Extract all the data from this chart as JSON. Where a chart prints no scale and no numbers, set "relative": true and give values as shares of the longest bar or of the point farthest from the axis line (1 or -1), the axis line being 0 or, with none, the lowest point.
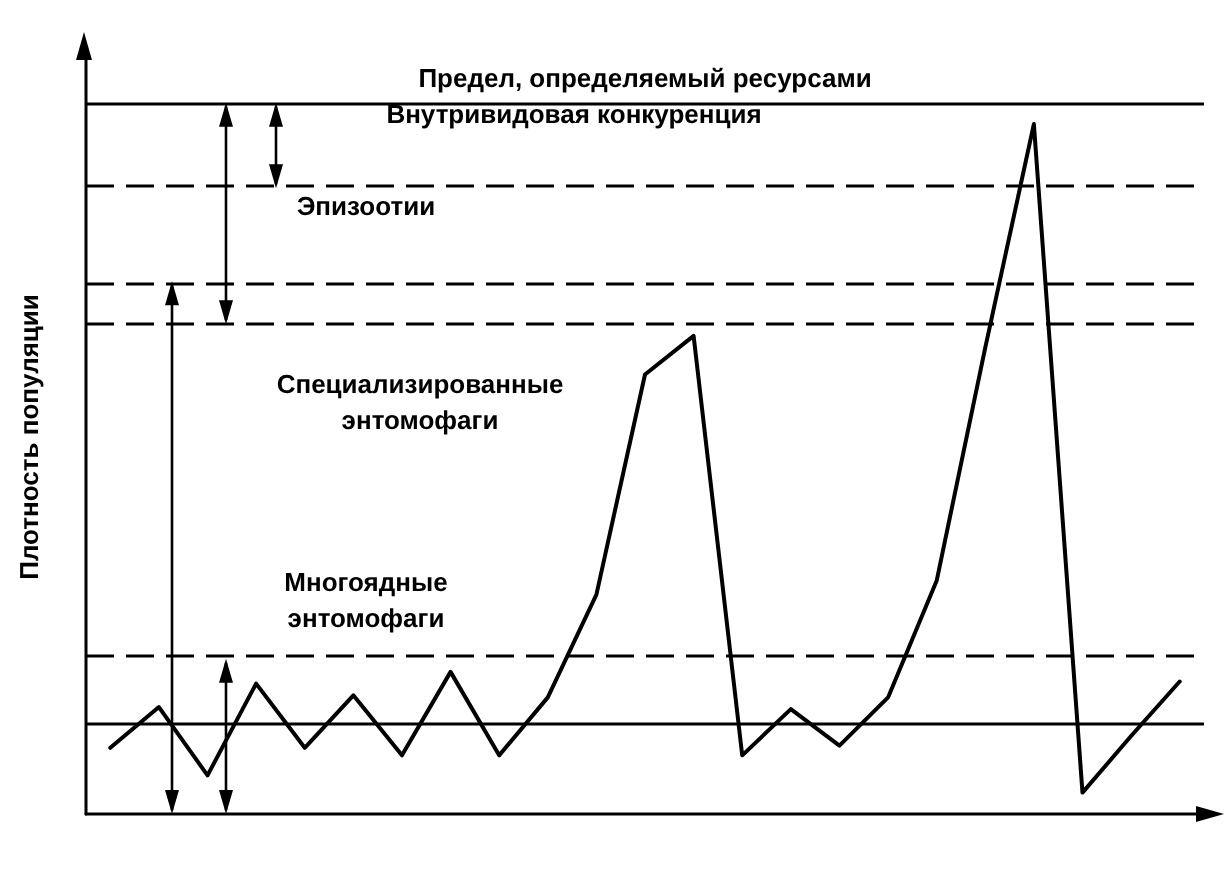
{
  "chart_data": {
    "type": "line",
    "relative": true,
    "ylabel": "Плотность популяции",
    "categories": [
      null,
      null,
      null,
      null,
      null,
      null,
      null,
      null,
      null,
      null,
      null,
      null,
      null,
      null,
      null,
      null,
      null,
      null,
      null,
      null,
      null,
      null,
      null
    ],
    "series": [
      {
        "color": "#000000",
        "values": [
          0.096,
          0.155,
          0.056,
          0.189,
          0.096,
          0.172,
          0.085,
          0.206,
          0.085,
          0.169,
          0.318,
          0.637,
          0.693,
          0.085,
          0.152,
          0.099,
          0.169,
          0.338,
          0.676,
          1,
          0.031,
          0.113,
          0.192
        ]
      }
    ],
    "marker": "none",
    "line_style": "solid",
    "grid": false,
    "ref_lines": [
      {
        "axis": "y",
        "value": 1.031,
        "label": "Предел, определяемый ресурсами",
        "line_style": "solid"
      },
      {
        "axis": "y",
        "value": 0.907,
        "label": null,
        "line_style": "dashed"
      },
      {
        "axis": "y",
        "value": 0.772,
        "label": null,
        "line_style": "dashed"
      },
      {
        "axis": "y",
        "value": 0.71,
        "label": null,
        "line_style": "dashed"
      },
      {
        "axis": "y",
        "value": 0.225,
        "label": null,
        "line_style": "dashed"
      },
      {
        "axis": "y",
        "value": 0.127,
        "label": null,
        "line_style": "solid"
      }
    ],
    "annotations": [
      "Внутривидовая конкуренция",
      "Эпизоотии",
      "Специализированные\nэнтомофаги",
      "Многоядные\nэнтомофаги"
    ]
  }
}
